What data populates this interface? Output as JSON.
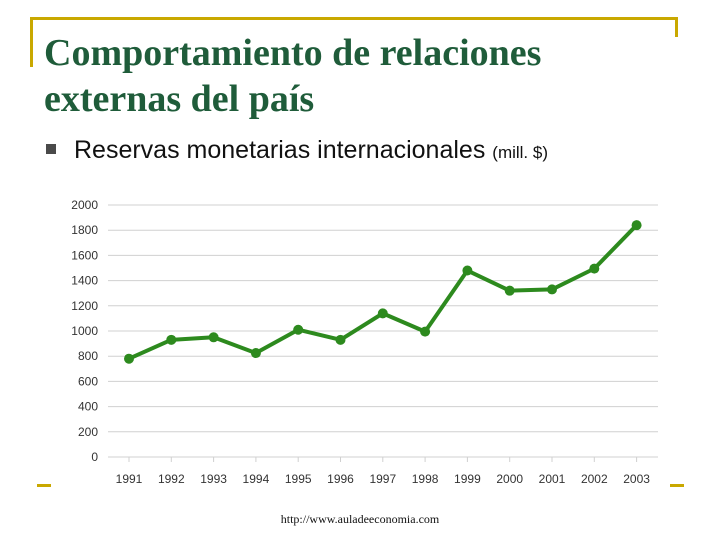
{
  "slide": {
    "title_line1": "Comportamiento de relaciones",
    "title_line2": "externas del país",
    "bullet_text": "Reservas monetarias internacionales",
    "bullet_unit": "(mill. $)",
    "footer": "http://www.auladeeconomia.com"
  },
  "colors": {
    "line": "#2d8a1e",
    "grid": "#d0d0d0",
    "accent": "#c9a800",
    "title": "#1f5c3a"
  },
  "chart_data": {
    "type": "line",
    "title": "",
    "xlabel": "",
    "ylabel": "",
    "x": [
      "1991",
      "1992",
      "1993",
      "1994",
      "1995",
      "1996",
      "1997",
      "1998",
      "1999",
      "2000",
      "2001",
      "2002",
      "2003"
    ],
    "series": [
      {
        "values": [
          780,
          930,
          950,
          825,
          1010,
          930,
          1140,
          995,
          1480,
          1320,
          1330,
          1495,
          1840
        ]
      }
    ],
    "ylim": [
      0,
      2000
    ],
    "yticks": [
      0,
      200,
      400,
      600,
      800,
      1000,
      1200,
      1400,
      1600,
      1800,
      2000
    ],
    "grid": true,
    "legend": "none"
  }
}
